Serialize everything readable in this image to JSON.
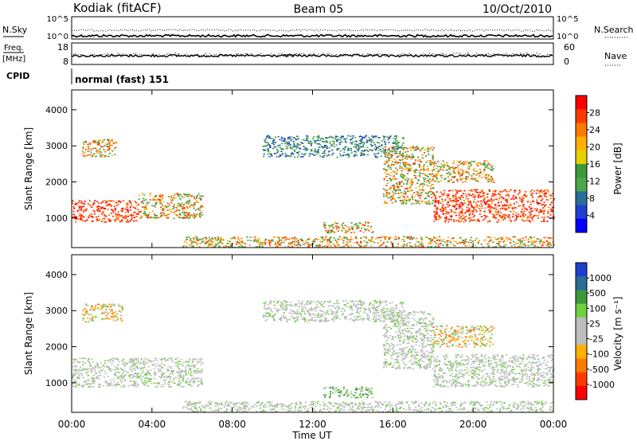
{
  "header": {
    "station": "Kodiak (fitACF)",
    "beam": "Beam 05",
    "date": "10/Oct/2010"
  },
  "status_panels": {
    "nsky_label": "N.Sky",
    "nsearch_label": "N.Search",
    "nsky_ticks": [
      "10^5",
      "10^0"
    ],
    "nsearch_ticks": [
      "10^5",
      "10^0"
    ],
    "freq_label_line1": "Freq.",
    "freq_label_line2": "[MHz]",
    "freq_ticks": [
      "18",
      "8"
    ],
    "nave_label": "Nave",
    "nave_ticks": [
      "60",
      "0"
    ],
    "cpid_label": "CPID",
    "cpid_value": "normal (fast) 151"
  },
  "chart_data": [
    {
      "type": "heatmap",
      "panel": "power",
      "ylabel": "Slant Range [km]",
      "ylim": [
        180,
        4550
      ],
      "yticks": [
        "1000",
        "2000",
        "3000",
        "4000"
      ],
      "xlim_hours": [
        0,
        24
      ],
      "colorbar_label": "Power [dB]",
      "colorbar_ticks": [
        "28",
        "24",
        "20",
        "16",
        "12",
        "8",
        "4"
      ],
      "colorbar_colors": [
        "#ff0000",
        "#ff3a00",
        "#ff7a00",
        "#ffb000",
        "#e6d000",
        "#3c9a3c",
        "#4aa84a",
        "#2a6d9a",
        "#1f3fd0",
        "#0000ff"
      ],
      "echo_regions": [
        {
          "h0": 0.0,
          "h1": 3.3,
          "r0": 900,
          "r1": 1500,
          "level": "high"
        },
        {
          "h0": 3.3,
          "h1": 6.5,
          "r0": 1000,
          "r1": 1700,
          "level": "mid"
        },
        {
          "h0": 0.5,
          "h1": 2.2,
          "r0": 2700,
          "r1": 3200,
          "level": "mid"
        },
        {
          "h0": 9.5,
          "h1": 16.5,
          "r0": 2700,
          "r1": 3300,
          "level": "low"
        },
        {
          "h0": 12.5,
          "h1": 15.0,
          "r0": 600,
          "r1": 900,
          "level": "mid"
        },
        {
          "h0": 5.5,
          "h1": 24.0,
          "r0": 200,
          "r1": 500,
          "level": "mid"
        },
        {
          "h0": 15.5,
          "h1": 18.0,
          "r0": 1400,
          "r1": 3000,
          "level": "mid"
        },
        {
          "h0": 18.0,
          "h1": 24.0,
          "r0": 900,
          "r1": 1800,
          "level": "high"
        },
        {
          "h0": 18.0,
          "h1": 21.0,
          "r0": 2000,
          "r1": 2600,
          "level": "mid"
        }
      ]
    },
    {
      "type": "heatmap",
      "panel": "velocity",
      "ylabel": "Slant Range [km]",
      "ylim": [
        180,
        4550
      ],
      "yticks": [
        "1000",
        "2000",
        "3000",
        "4000"
      ],
      "xlim_hours": [
        0,
        24
      ],
      "xticks": [
        "00:00",
        "04:00",
        "08:00",
        "12:00",
        "16:00",
        "20:00",
        "00:00"
      ],
      "xlabel": "Time UT",
      "colorbar_label": "Velocity [m s⁻¹]",
      "colorbar_ticks": [
        "1000",
        "500",
        "100",
        "25",
        "-25",
        "-100",
        "-500",
        "-1000"
      ],
      "colorbar_colors": [
        "#1f3fd0",
        "#2a6d9a",
        "#3c9a3c",
        "#6fd040",
        "#bdbdbd",
        "#bdbdbd",
        "#ffb000",
        "#ff7a00",
        "#ff3a00",
        "#ff0000"
      ],
      "echo_regions": [
        {
          "h0": 0.0,
          "h1": 6.5,
          "r0": 900,
          "r1": 1700,
          "level": "gray"
        },
        {
          "h0": 0.5,
          "h1": 2.5,
          "r0": 2700,
          "r1": 3200,
          "level": "orange"
        },
        {
          "h0": 9.5,
          "h1": 16.5,
          "r0": 2700,
          "r1": 3300,
          "level": "gray"
        },
        {
          "h0": 12.5,
          "h1": 15.0,
          "r0": 600,
          "r1": 900,
          "level": "green"
        },
        {
          "h0": 5.5,
          "h1": 24.0,
          "r0": 200,
          "r1": 500,
          "level": "gray"
        },
        {
          "h0": 15.5,
          "h1": 18.0,
          "r0": 1400,
          "r1": 3000,
          "level": "gray"
        },
        {
          "h0": 18.0,
          "h1": 24.0,
          "r0": 900,
          "r1": 1800,
          "level": "gray"
        },
        {
          "h0": 18.0,
          "h1": 21.0,
          "r0": 2000,
          "r1": 2600,
          "level": "orange"
        }
      ]
    }
  ]
}
